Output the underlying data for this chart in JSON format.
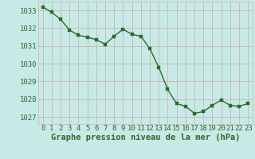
{
  "x": [
    0,
    1,
    2,
    3,
    4,
    5,
    6,
    7,
    8,
    9,
    10,
    11,
    12,
    13,
    14,
    15,
    16,
    17,
    18,
    19,
    20,
    21,
    22,
    23
  ],
  "y": [
    1033.2,
    1032.9,
    1032.5,
    1031.9,
    1031.6,
    1031.5,
    1031.35,
    1031.1,
    1031.55,
    1031.95,
    1031.65,
    1031.55,
    1030.85,
    1029.8,
    1028.55,
    1027.75,
    1027.6,
    1027.2,
    1027.3,
    1027.65,
    1027.95,
    1027.65,
    1027.6,
    1027.75
  ],
  "line_color": "#2d6a2d",
  "marker_color": "#2d6a2d",
  "bg_color": "#c8eae6",
  "grid_color_v": "#c8b4b4",
  "grid_color_h": "#c8b4b4",
  "tick_label_color": "#2d6a2d",
  "xlabel": "Graphe pression niveau de la mer (hPa)",
  "xlabel_color": "#2d6a2d",
  "ylim": [
    1026.6,
    1033.5
  ],
  "yticks": [
    1027,
    1028,
    1029,
    1030,
    1031,
    1032,
    1033
  ],
  "xticks": [
    0,
    1,
    2,
    3,
    4,
    5,
    6,
    7,
    8,
    9,
    10,
    11,
    12,
    13,
    14,
    15,
    16,
    17,
    18,
    19,
    20,
    21,
    22,
    23
  ],
  "marker_size": 2.5,
  "line_width": 1.0,
  "font_size_ticks": 6.5,
  "font_size_xlabel": 7.5
}
